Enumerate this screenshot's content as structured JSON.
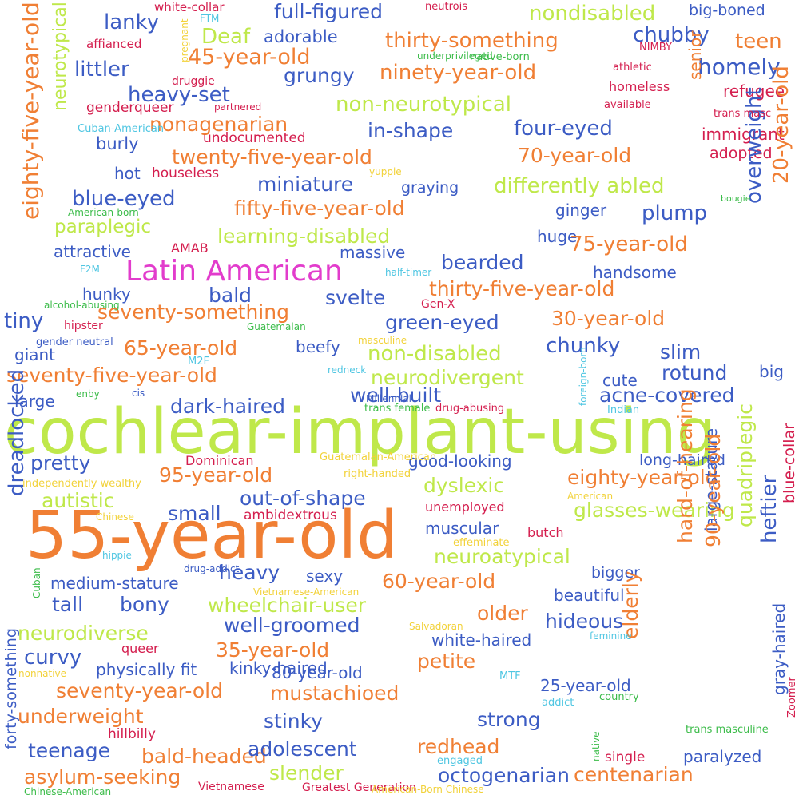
{
  "colors": {
    "lime": "#bfe84a",
    "orange": "#f07f34",
    "blue": "#3c5cc4",
    "magenta": "#e23ccc",
    "crimson": "#d41e4e",
    "yellow": "#f2d23a",
    "cyan": "#4fc6e2",
    "green": "#3cbc4a"
  },
  "words": [
    "cochlear-implant-using",
    "55-year-old",
    "Latin American",
    "eighty-five-year-old",
    "neurotypical",
    "full-figured",
    "nondisabled",
    "thirty-something",
    "chubby",
    "teen",
    "big-boned",
    "Deaf",
    "adorable",
    "45-year-old",
    "lanky",
    "littler",
    "grungy",
    "ninety-year-old",
    "homely",
    "heavy-set",
    "non-neurotypical",
    "refugee",
    "senior",
    "nonagenarian",
    "in-shape",
    "four-eyed",
    "immigrant",
    "twenty-five-year-old",
    "70-year-old",
    "adopted",
    "burly",
    "undocumented",
    "hot",
    "houseless",
    "miniature",
    "differently abled",
    "blue-eyed",
    "graying",
    "fifty-five-year-old",
    "ginger",
    "plump",
    "paraplegic",
    "learning-disabled",
    "huge",
    "75-year-old",
    "attractive",
    "massive",
    "bearded",
    "overweight",
    "20-year-old",
    "handsome",
    "thirty-five-year-old",
    "hunky",
    "bald",
    "svelte",
    "seventy-something",
    "tiny",
    "green-eyed",
    "30-year-old",
    "65-year-old",
    "beefy",
    "non-disabled",
    "chunky",
    "slim",
    "seventy-five-year-old",
    "neurodivergent",
    "rotund",
    "giant",
    "big",
    "cute",
    "large",
    "dark-haired",
    "well-built",
    "acne-covered",
    "pretty",
    "dreadlocked",
    "long-haired",
    "good-looking",
    "95-year-old",
    "dyslexic",
    "eighty-year-old",
    "autistic",
    "out-of-shape",
    "small",
    "glasses-wearing",
    "muscular",
    "neuroatypical",
    "heftier",
    "hard-of-hearing",
    "quadriplegic",
    "large-stature",
    "blue-collar",
    "heavy",
    "sexy",
    "medium-stature",
    "tall",
    "bony",
    "60-year-old",
    "bigger",
    "beautiful",
    "wheelchair-user",
    "older",
    "hideous",
    "elderly",
    "90-year-old",
    "well-groomed",
    "neurodiverse",
    "white-haired",
    "curvy",
    "35-year-old",
    "gray-haired",
    "physically fit",
    "kinky-haired",
    "80-year-old",
    "petite",
    "25-year-old",
    "seventy-year-old",
    "mustachioed",
    "forty-something",
    "underweight",
    "stinky",
    "strong",
    "teenage",
    "bald-headed",
    "adolescent",
    "redhead",
    "paralyzed",
    "slender",
    "octogenarian",
    "centenarian",
    "asylum-seeking",
    "white-collar",
    "neutrois",
    "FTM",
    "pregnant",
    "affianced",
    "NIMBY",
    "underprivileged",
    "native-born",
    "athletic",
    "druggie",
    "homeless",
    "genderqueer",
    "partnered",
    "available",
    "trans masc",
    "Cuban-American",
    "yuppie",
    "bougie",
    "American-born",
    "AMAB",
    "F2M",
    "half-timer",
    "Gen-X",
    "alcohol-abusing",
    "hipster",
    "Guatemalan",
    "masculine",
    "gender neutral",
    "M2F",
    "redneck",
    "enby",
    "cis",
    "Millennial",
    "foreign-born",
    "trans female",
    "drug-abusing",
    "Indian",
    "Dominican",
    "Guatemalan-American",
    "right-handed",
    "independently wealthy",
    "unemployed",
    "American",
    "ambidextrous",
    "Chinese",
    "butch",
    "effeminate",
    "hippie",
    "Cuban",
    "drug-addict",
    "Vietnamese-American",
    "queer",
    "Salvadoran",
    "feminine",
    "nonnative",
    "MTF",
    "Zoomer",
    "addict",
    "country",
    "hillbilly",
    "native",
    "trans masculine",
    "single",
    "engaged",
    "Vietnamese",
    "Greatest Generation",
    "American-Born Chinese",
    "Chinese-American"
  ]
}
